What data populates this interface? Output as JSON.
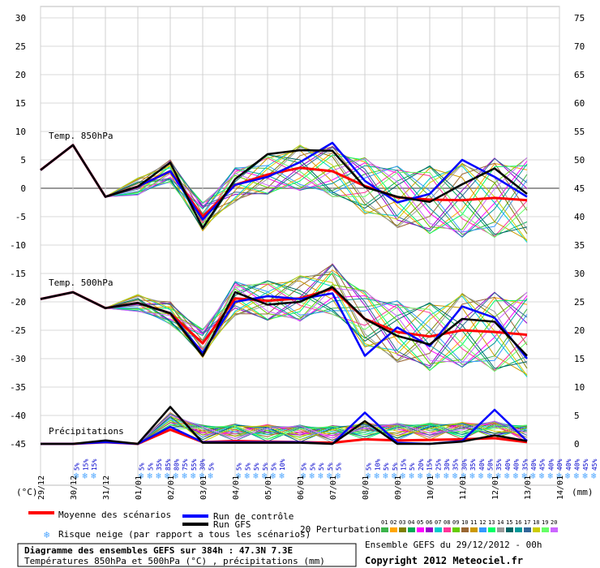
{
  "chart_data": {
    "type": "line",
    "title": "Diagramme des ensembles GEFS sur 384h : 47.3N 7.3E",
    "subtitle": "Températures 850hPa et 500hPa (°C) , précipitations (mm)",
    "info": "Ensemble GEFS du 29/12/2012 - 00h",
    "copyright": "Copyright 2012 Meteociel.fr",
    "y_unit_left": "(°C)",
    "y_unit_right": "(mm)",
    "y_left_ticks": [
      30,
      25,
      20,
      15,
      10,
      5,
      0,
      -5,
      -10,
      -15,
      -20,
      -25,
      -30,
      -35,
      -40,
      -45
    ],
    "y_right_ticks": [
      75,
      70,
      65,
      60,
      55,
      50,
      45,
      40,
      35,
      30,
      25,
      20,
      15,
      10,
      5,
      0
    ],
    "ylim_left": [
      -45,
      30
    ],
    "ylim_right": [
      0,
      75
    ],
    "x_labels": [
      "29/12",
      "30/12",
      "31/12",
      "01/01",
      "02/01",
      "03/01",
      "04/01",
      "05/01",
      "06/01",
      "07/01",
      "08/01",
      "09/01",
      "10/01",
      "11/01",
      "12/01",
      "13/01",
      "14/01"
    ],
    "panel_labels": {
      "t850": "Temp. 850hPa",
      "t500": "Temp. 500hPa",
      "precip": "Précipitations"
    },
    "snow_risk": [
      {
        "day": "30/12",
        "values": [
          "5%",
          "15%",
          "15%"
        ]
      },
      {
        "day": "01/01",
        "values": [
          "5%",
          "5%",
          "35%",
          "85%",
          "80%",
          "75%",
          "55%",
          "30%",
          "5%"
        ]
      },
      {
        "day": "04/01",
        "values": [
          "5%",
          "5%",
          "5%",
          "5%",
          "5%",
          "10%"
        ]
      },
      {
        "day": "06/01",
        "values": [
          "5%",
          "5%",
          "5%",
          "5%",
          "5%"
        ]
      },
      {
        "day": "08/01",
        "values": [
          "5%",
          "10%",
          "5%",
          "5%",
          "15%",
          "5%",
          "20%",
          "15%",
          "25%",
          "30%",
          "35%",
          "30%",
          "35%",
          "40%",
          "50%",
          "35%",
          "40%",
          "40%",
          "35%",
          "40%",
          "45%",
          "40%",
          "40%",
          "40%",
          "40%",
          "45%",
          "45%",
          "45%",
          "40%",
          "45%"
        ]
      }
    ],
    "series": [
      {
        "name": "Moyenne des scénarios",
        "color": "#ff0000",
        "t850": [
          3.2,
          7.6,
          -1.5,
          0.3,
          3.0,
          -5.0,
          0.6,
          2.4,
          3.6,
          3.0,
          0.4,
          -1.6,
          -2.0,
          -2.1,
          -1.7,
          -2.1
        ],
        "t500": [
          -19.5,
          -18.3,
          -21.1,
          -20.2,
          -22.0,
          -27.3,
          -19.4,
          -19.8,
          -19.4,
          -17.7,
          -23.0,
          -25.3,
          -26.1,
          -25.0,
          -25.3,
          -25.8
        ],
        "precip": [
          0,
          0,
          0.3,
          0,
          2.5,
          0.3,
          0.5,
          0.4,
          0.3,
          0.2,
          0.8,
          0.6,
          0.7,
          0.8,
          1.0,
          0.3
        ]
      },
      {
        "name": "Run de contrôle",
        "color": "#0000ff",
        "t850": [
          3.2,
          7.6,
          -1.5,
          0.3,
          3.0,
          -5.5,
          0.6,
          2.0,
          4.6,
          8.0,
          1.3,
          -2.5,
          -1.0,
          5.0,
          2.0,
          -1.5
        ],
        "t500": [
          -19.5,
          -18.3,
          -21.1,
          -20.2,
          -22.0,
          -29.0,
          -20.0,
          -19.0,
          -19.5,
          -18.5,
          -29.5,
          -24.5,
          -27.8,
          -20.8,
          -22.8,
          -30.0
        ],
        "precip": [
          0,
          0,
          0.3,
          0,
          3.0,
          0.3,
          0.3,
          0.3,
          0.3,
          0,
          5.5,
          0.2,
          0,
          0.5,
          6.0,
          0.5
        ]
      },
      {
        "name": "Run GFS",
        "color": "#000000",
        "t850": [
          3.2,
          7.6,
          -1.5,
          0.3,
          4.5,
          -7.0,
          1.6,
          6.0,
          6.7,
          6.6,
          0.2,
          -1.5,
          -2.4,
          0.7,
          3.5,
          -1.0
        ],
        "t500": [
          -19.5,
          -18.3,
          -21.1,
          -20.2,
          -22.0,
          -29.5,
          -18.3,
          -20.5,
          -20.0,
          -17.4,
          -23.0,
          -26.0,
          -27.5,
          -23.0,
          -23.5,
          -29.5
        ],
        "precip": [
          0,
          0,
          0.6,
          0,
          6.5,
          0.2,
          0.2,
          0.2,
          0.2,
          0,
          4.0,
          0,
          0,
          0.4,
          1.5,
          0.5
        ]
      }
    ],
    "perturbations_label": "20 Perturbations",
    "perturbations": [
      "01",
      "02",
      "03",
      "04",
      "05",
      "06",
      "07",
      "08",
      "09",
      "10",
      "11",
      "12",
      "13",
      "14",
      "15",
      "16",
      "17",
      "18",
      "19",
      "20"
    ],
    "perturbation_colors": [
      "#3cb44b",
      "#ffa500",
      "#7f7f00",
      "#00aa55",
      "#ff00ff",
      "#9900cc",
      "#00cccc",
      "#ff3399",
      "#66cc00",
      "#996633",
      "#cc9900",
      "#3399ff",
      "#00ff66",
      "#999999",
      "#006666",
      "#009999",
      "#336699",
      "#cccc00",
      "#66ff66",
      "#cc66ff"
    ],
    "legend": {
      "mean": "Moyenne des scénarios",
      "control": "Run de contrôle",
      "gfs": "Run GFS",
      "snow": "Risque neige (par rapport a tous les scénarios)"
    }
  }
}
